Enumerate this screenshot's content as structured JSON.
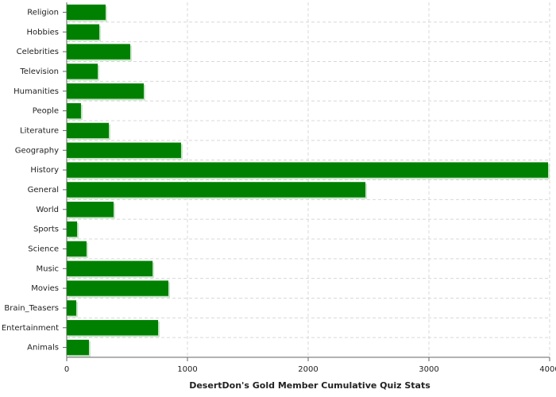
{
  "chart_data": {
    "type": "bar",
    "orientation": "horizontal",
    "x_label": "DesertDon's Gold Member Cumulative Quiz Stats",
    "categories": [
      "Religion",
      "Hobbies",
      "Celebrities",
      "Television",
      "Humanities",
      "People",
      "Literature",
      "Geography",
      "History",
      "General",
      "World",
      "Sports",
      "Science",
      "Music",
      "Movies",
      "Brain_Teasers",
      "Entertainment",
      "Animals"
    ],
    "values": [
      322,
      270,
      526,
      257,
      638,
      118,
      349,
      947,
      3987,
      2474,
      388,
      86,
      164,
      711,
      842,
      79,
      757,
      184
    ],
    "color": "#008000",
    "xlim": [
      0,
      4000
    ],
    "xticks": [
      0,
      1000,
      2000,
      3000,
      4000
    ],
    "grid": true
  }
}
